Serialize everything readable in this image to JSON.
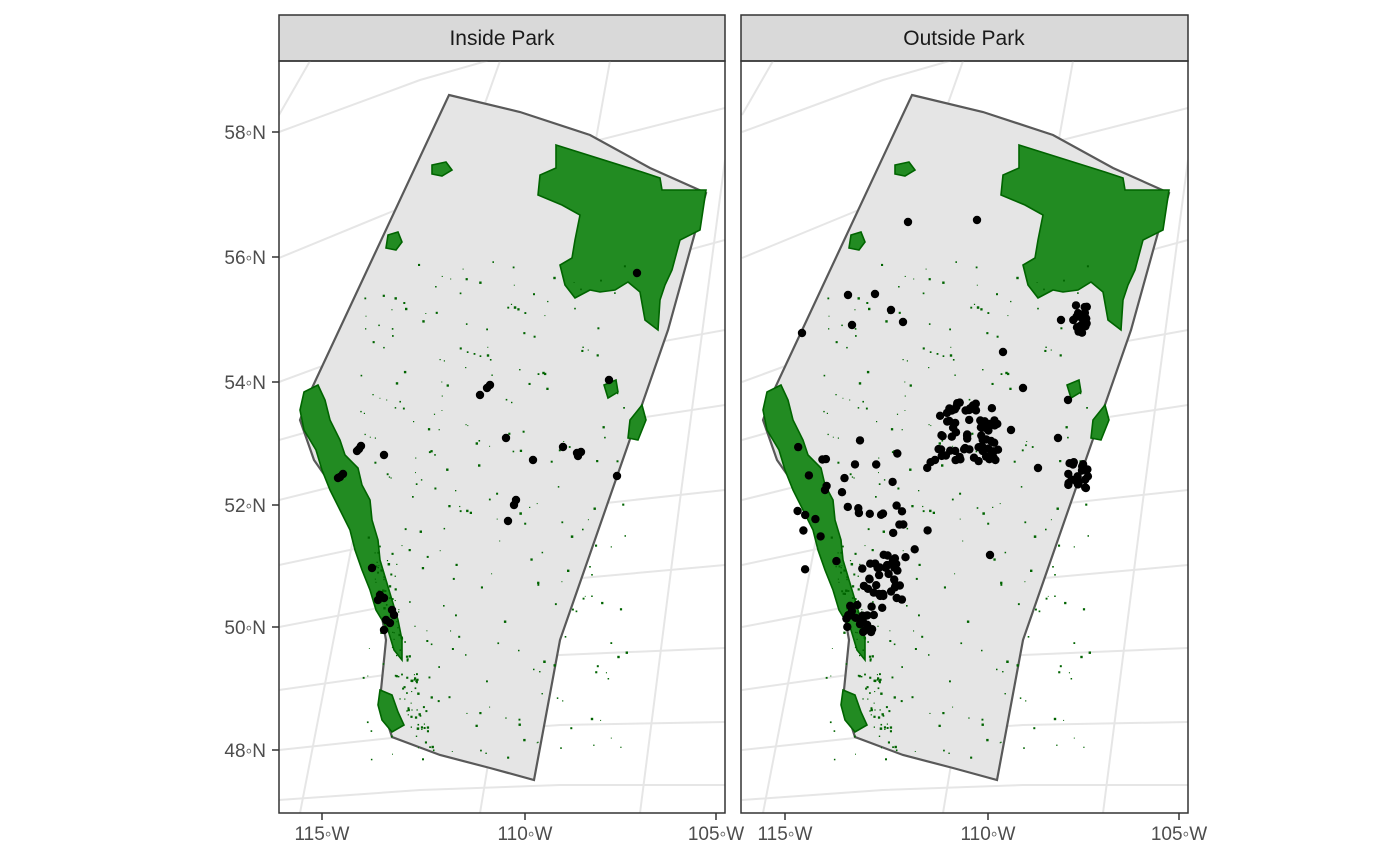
{
  "chart_data": {
    "type": "scatter",
    "facets": [
      {
        "title": "Inside Park"
      },
      {
        "title": "Outside Park"
      }
    ],
    "x_ticks": [
      "115◦W",
      "110◦W",
      "105◦W"
    ],
    "y_ticks": [
      "58◦N",
      "56◦N",
      "54◦N",
      "52◦N",
      "50◦N",
      "48◦N"
    ],
    "colors": {
      "province_fill": "#e5e5e5",
      "province_border": "#595959",
      "park_fill": "#228b22",
      "park_border": "#006400",
      "point": "#000000",
      "graticule": "#e6e6e6",
      "strip_background": "#d9d9d9"
    },
    "grid": true
  }
}
